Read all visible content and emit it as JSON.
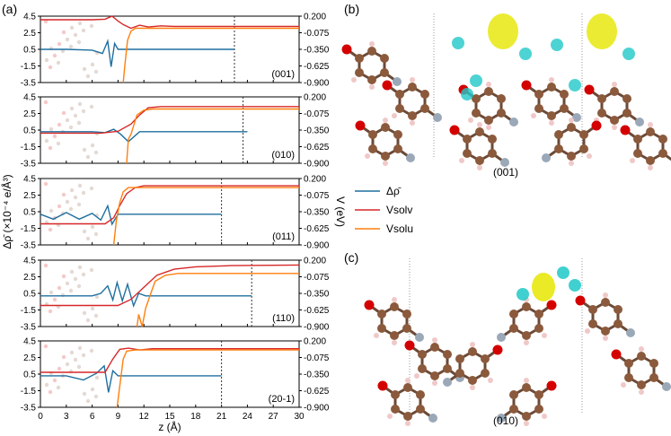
{
  "figure": {
    "panel_a_label": "(a)",
    "panel_b_label": "(b)",
    "panel_c_label": "(c)",
    "panel_b_caption": "(001)",
    "panel_c_caption": "(010)",
    "xlabel": "z (Å)",
    "ylabel_left": "Δρ̄ (×10⁻⁴ e/Å³)",
    "ylabel_right": "V (eV)",
    "legend": [
      {
        "label": "Δρ̄",
        "color": "#1f6f9f"
      },
      {
        "label": "Vsolv",
        "color": "#d62728"
      },
      {
        "label": "Vsolu",
        "color": "#ff7f0e"
      }
    ],
    "colors": {
      "delta_rho": "#1f6f9f",
      "v_solv": "#d62728",
      "v_solu": "#ff7f0e",
      "iso_yellow": "#e6e600",
      "iso_cyan": "#20c8c8",
      "carbon": "#8b5a3c",
      "oxygen": "#d40000",
      "nitrogen": "#9aa8b8",
      "hydrogen": "#f0c8c8"
    }
  },
  "chart_data": {
    "type": "line",
    "shared_x": {
      "xlabel": "z (Å)",
      "xlim": [
        0,
        30
      ],
      "ticks": [
        "0",
        "3",
        "6",
        "9",
        "12",
        "15",
        "18",
        "21",
        "24",
        "27",
        "30"
      ]
    },
    "left_axis": {
      "ylim": [
        -3.5,
        4.5
      ],
      "ticks": [
        "4.5",
        "2.5",
        "0.5",
        "-1.5",
        "-3.5"
      ]
    },
    "right_axis": {
      "ylim": [
        -0.9,
        0.2
      ],
      "ticks": [
        "0.200",
        "-0.075",
        "-0.350",
        "-0.625",
        "-0.900"
      ]
    },
    "panels": [
      {
        "surface": "(001)",
        "vline_x": 22.5,
        "series": [
          {
            "name": "Δρ̄",
            "axis": "left",
            "x": [
              0,
              3,
              6,
              7.2,
              7.8,
              8.2,
              8.6,
              9.0,
              9.6,
              22.5
            ],
            "y": [
              0.5,
              0.5,
              0.4,
              0.0,
              1.5,
              -1.6,
              1.2,
              0.5,
              0.5,
              0.5
            ]
          },
          {
            "name": "Vsolv",
            "axis": "right",
            "x": [
              0,
              6,
              7.5,
              8.3,
              9.0,
              9.6,
              10.5,
              11.5,
              12.5,
              14,
              15.5,
              17,
              19,
              22,
              30
            ],
            "y": [
              0.14,
              0.14,
              0.15,
              0.2,
              0.12,
              0.06,
              0.0,
              0.05,
              0.02,
              0.04,
              0.03,
              0.03,
              0.03,
              0.03,
              0.03
            ]
          },
          {
            "name": "Vsolu",
            "axis": "right",
            "x": [
              9.6,
              9.8,
              10.1,
              10.5,
              11.0,
              12,
              30
            ],
            "y": [
              -0.9,
              -0.6,
              -0.2,
              -0.05,
              0.0,
              0.0,
              0.0
            ]
          }
        ]
      },
      {
        "surface": "(010)",
        "vline_x": 23.5,
        "series": [
          {
            "name": "Δρ̄",
            "axis": "left",
            "x": [
              0,
              6,
              7.5,
              8.5,
              9.3,
              10.2,
              11.5,
              24
            ],
            "y": [
              0.3,
              0.3,
              0.2,
              0.6,
              0.0,
              -0.9,
              0.3,
              0.3
            ]
          },
          {
            "name": "Vsolv",
            "axis": "right",
            "x": [
              0,
              7,
              9,
              10.5,
              11.5,
              12.5,
              14,
              30
            ],
            "y": [
              -0.4,
              -0.4,
              -0.37,
              -0.25,
              -0.1,
              0.02,
              0.04,
              0.04
            ]
          },
          {
            "name": "Vsolu",
            "axis": "right",
            "x": [
              10.0,
              10.2,
              10.5,
              10.8,
              11.2,
              12,
              13,
              30
            ],
            "y": [
              -0.9,
              -0.5,
              -0.42,
              -0.28,
              -0.1,
              -0.02,
              0.0,
              0.0
            ]
          }
        ]
      },
      {
        "surface": "(011)",
        "vline_x": 21.0,
        "series": [
          {
            "name": "Δρ̄",
            "axis": "left",
            "x": [
              0,
              1.5,
              3,
              4.5,
              6,
              7,
              7.8,
              8.3,
              9,
              21
            ],
            "y": [
              0.2,
              -0.4,
              0.4,
              -0.4,
              0.3,
              -0.5,
              1.2,
              -1.0,
              0.2,
              0.2
            ]
          },
          {
            "name": "Vsolv",
            "axis": "right",
            "x": [
              0,
              6,
              7.5,
              8.5,
              9.2,
              10,
              11,
              12,
              30
            ],
            "y": [
              -0.55,
              -0.55,
              -0.55,
              -0.45,
              -0.25,
              -0.05,
              0.05,
              0.08,
              0.08
            ]
          },
          {
            "name": "Vsolu",
            "axis": "right",
            "x": [
              8.5,
              8.8,
              9.2,
              9.6,
              10.2,
              11,
              30
            ],
            "y": [
              -0.9,
              -0.5,
              -0.2,
              -0.02,
              0.05,
              0.05,
              0.05
            ]
          }
        ]
      },
      {
        "surface": "(110)",
        "vline_x": 24.5,
        "series": [
          {
            "name": "Δρ̄",
            "axis": "left",
            "x": [
              0,
              6,
              7,
              7.8,
              8.4,
              8.9,
              9.5,
              10.1,
              10.8,
              11.4,
              12.2,
              24.5
            ],
            "y": [
              0.2,
              0.2,
              0.5,
              1.4,
              -0.3,
              1.8,
              -0.4,
              1.6,
              -1.0,
              0.5,
              0.2,
              0.2
            ]
          },
          {
            "name": "Vsolv",
            "axis": "right",
            "x": [
              0,
              9,
              10.5,
              12,
              13.5,
              15.5,
              18,
              22,
              30
            ],
            "y": [
              -0.55,
              -0.55,
              -0.45,
              -0.25,
              -0.05,
              0.05,
              0.09,
              0.11,
              0.12
            ]
          },
          {
            "name": "Vsolu",
            "axis": "right",
            "x": [
              11.2,
              11.4,
              11.8,
              12.2,
              12.8,
              13.3,
              14.5,
              16,
              30
            ],
            "y": [
              -0.9,
              -0.7,
              -0.9,
              -0.6,
              -0.35,
              -0.15,
              -0.05,
              -0.02,
              -0.02
            ]
          }
        ]
      },
      {
        "surface": "(20-1)",
        "vline_x": 21.0,
        "series": [
          {
            "name": "Δρ̄",
            "axis": "left",
            "x": [
              0,
              3,
              5,
              6.5,
              7.4,
              7.9,
              8.4,
              9.0,
              21
            ],
            "y": [
              0.3,
              0.3,
              -0.2,
              0.6,
              1.5,
              -1.7,
              0.9,
              0.3,
              0.3
            ]
          },
          {
            "name": "Vsolv",
            "axis": "right",
            "x": [
              0,
              7.5,
              8.4,
              9.2,
              10.2,
              11.5,
              13,
              30
            ],
            "y": [
              -0.32,
              -0.32,
              -0.1,
              0.06,
              0.08,
              0.05,
              0.07,
              0.07
            ]
          },
          {
            "name": "Vsolu",
            "axis": "right",
            "x": [
              8.9,
              9.2,
              9.6,
              10.0,
              11,
              30
            ],
            "y": [
              -0.9,
              -0.55,
              -0.1,
              0.03,
              0.05,
              0.05
            ]
          }
        ]
      }
    ]
  }
}
